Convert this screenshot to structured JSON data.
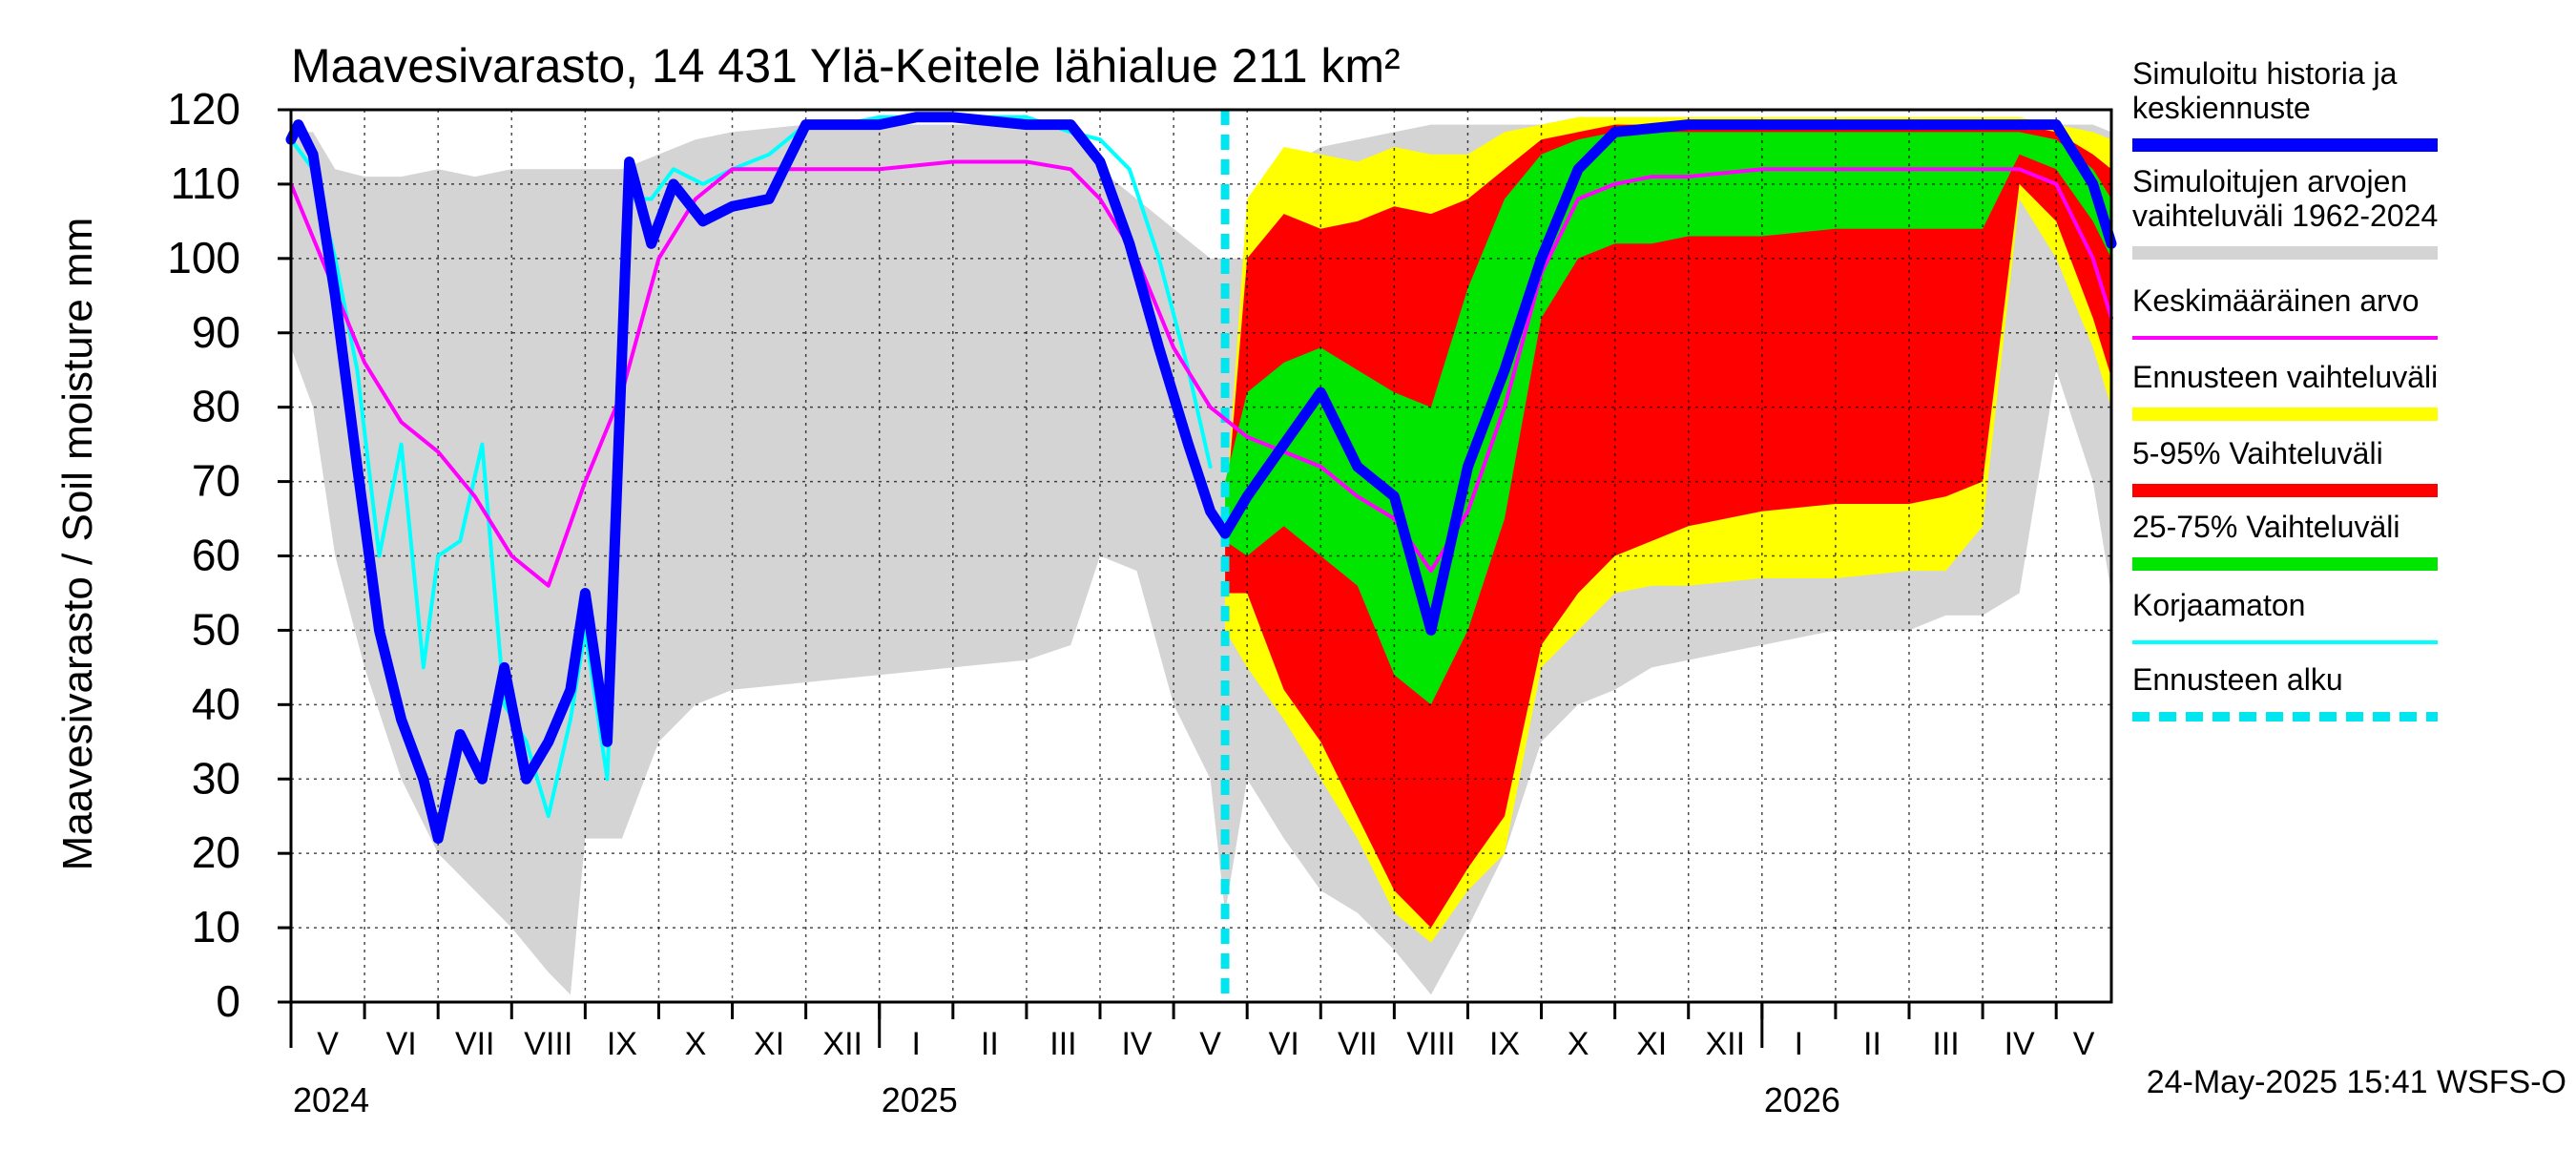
{
  "chart_data": {
    "type": "area",
    "title": "Maavesivarasto, 14 431 Ylä-Keitele lähialue 211 km²",
    "ylabel": "Maavesivarasto / Soil moisture   mm",
    "xlabel": "",
    "ylim": [
      0,
      120
    ],
    "yticks": [
      0,
      10,
      20,
      30,
      40,
      50,
      60,
      70,
      80,
      90,
      100,
      110,
      120
    ],
    "grid": true,
    "x_range_months": [
      0,
      24.75
    ],
    "month_labels": [
      "V",
      "VI",
      "VII",
      "VIII",
      "IX",
      "X",
      "XI",
      "XII",
      "I",
      "II",
      "III",
      "IV",
      "V",
      "VI",
      "VII",
      "VIII",
      "IX",
      "X",
      "XI",
      "XII",
      "I",
      "II",
      "III",
      "IV",
      "V"
    ],
    "year_labels": [
      {
        "label": "2024",
        "month": 0
      },
      {
        "label": "2025",
        "month": 8
      },
      {
        "label": "2026",
        "month": 20
      }
    ],
    "forecast_start_month": 12.7,
    "footer": "24-May-2025 15:41 WSFS-O",
    "colors": {
      "history_range": "#d4d4d4",
      "forecast_range": "#ffff00",
      "p5_95": "#ff0000",
      "p25_75": "#00e600",
      "simulated": "#0000ff",
      "mean": "#ff00ff",
      "uncorrected": "#00ffff",
      "forecast_start": "#00e5ee"
    },
    "legend": [
      {
        "label": "Simuloitu historia ja keskiennuste",
        "key": "simulated"
      },
      {
        "label": "Simuloitujen arvojen vaihteluväli 1962-2024",
        "key": "history_range"
      },
      {
        "label": "Keskimääräinen arvo",
        "key": "mean"
      },
      {
        "label": "Ennusteen vaihteluväli",
        "key": "forecast_range"
      },
      {
        "label": "5-95% Vaihteluväli",
        "key": "p5_95"
      },
      {
        "label": "25-75% Vaihteluväli",
        "key": "p25_75"
      },
      {
        "label": "Korjaamaton",
        "key": "uncorrected"
      },
      {
        "label": "Ennusteen alku",
        "key": "forecast_start"
      }
    ],
    "series": [
      {
        "name": "Simulated history range 1962-2024",
        "kind": "band",
        "key": "history_range",
        "x": [
          0,
          0.3,
          0.6,
          1,
          1.5,
          2,
          2.5,
          3,
          3.5,
          3.8,
          4,
          4.5,
          5,
          5.5,
          6,
          7,
          8,
          9,
          10,
          10.6,
          11,
          11.5,
          12,
          12.5,
          12.7,
          13,
          13.5,
          14,
          14.5,
          15,
          15.5,
          16,
          16.5,
          17,
          17.5,
          18,
          18.5,
          19,
          20,
          21,
          22,
          22.5,
          23,
          23.5,
          24,
          24.5,
          24.75
        ],
        "low": [
          88,
          80,
          60,
          45,
          30,
          20,
          15,
          10,
          4,
          1,
          22,
          22,
          35,
          40,
          42,
          43,
          44,
          45,
          46,
          48,
          60,
          58,
          40,
          30,
          12,
          30,
          22,
          15,
          12,
          7,
          1,
          10,
          20,
          35,
          40,
          42,
          45,
          46,
          48,
          50,
          50,
          52,
          52,
          55,
          85,
          70,
          55
        ],
        "high": [
          117,
          117,
          112,
          111,
          111,
          112,
          111,
          112,
          112,
          112,
          112,
          112,
          114,
          116,
          117,
          118,
          118,
          118,
          118,
          117,
          112,
          108,
          104,
          100,
          100,
          100,
          112,
          115,
          116,
          117,
          118,
          118,
          118,
          118,
          119,
          119,
          119,
          119,
          119,
          119,
          119,
          118,
          117,
          116,
          118,
          118,
          117
        ]
      },
      {
        "name": "Forecast range",
        "kind": "band",
        "key": "forecast_range",
        "x": [
          12.7,
          13,
          13.5,
          14,
          14.5,
          15,
          15.5,
          16,
          16.5,
          17,
          17.5,
          18,
          18.5,
          19,
          20,
          21,
          22,
          22.5,
          23,
          23.5,
          24,
          24.5,
          24.75
        ],
        "low": [
          50,
          45,
          38,
          30,
          22,
          12,
          8,
          15,
          20,
          45,
          50,
          55,
          56,
          56,
          57,
          57,
          58,
          58,
          64,
          108,
          100,
          88,
          80
        ],
        "high": [
          65,
          108,
          115,
          114,
          113,
          115,
          114,
          114,
          117,
          118,
          119,
          119,
          119,
          119,
          119,
          119,
          119,
          119,
          119,
          119,
          118,
          117,
          116
        ]
      },
      {
        "name": "5-95% range",
        "kind": "band",
        "key": "p5_95",
        "x": [
          12.7,
          13,
          13.5,
          14,
          14.5,
          15,
          15.5,
          16,
          16.5,
          17,
          17.5,
          18,
          18.5,
          19,
          20,
          21,
          22,
          22.5,
          23,
          23.5,
          24,
          24.5,
          24.75
        ],
        "low": [
          55,
          55,
          42,
          35,
          25,
          15,
          10,
          18,
          25,
          48,
          55,
          60,
          62,
          64,
          66,
          67,
          67,
          68,
          70,
          110,
          105,
          92,
          84
        ],
        "high": [
          65,
          100,
          106,
          104,
          105,
          107,
          106,
          108,
          112,
          116,
          117,
          118,
          118,
          118,
          118,
          118,
          118,
          118,
          118,
          118,
          117,
          114,
          112
        ]
      },
      {
        "name": "25-75% range",
        "kind": "band",
        "key": "p25_75",
        "x": [
          12.7,
          13,
          13.5,
          14,
          14.5,
          15,
          15.5,
          16,
          16.5,
          17,
          17.5,
          18,
          18.5,
          19,
          20,
          21,
          22,
          22.5,
          23,
          23.5,
          24,
          24.5,
          24.75
        ],
        "low": [
          62,
          60,
          64,
          60,
          56,
          44,
          40,
          50,
          65,
          92,
          100,
          102,
          102,
          103,
          103,
          104,
          104,
          104,
          104,
          114,
          112,
          105,
          100
        ],
        "high": [
          70,
          82,
          86,
          88,
          85,
          82,
          80,
          96,
          108,
          114,
          116,
          117,
          117,
          117,
          117,
          117,
          117,
          117,
          117,
          117,
          116,
          112,
          108
        ]
      },
      {
        "name": "Simulated history and mean forecast",
        "kind": "line",
        "key": "simulated",
        "width": 11,
        "x": [
          0,
          0.1,
          0.3,
          0.6,
          0.9,
          1.2,
          1.5,
          1.8,
          2.0,
          2.3,
          2.6,
          2.9,
          3.2,
          3.5,
          3.8,
          4.0,
          4.3,
          4.6,
          4.9,
          5.2,
          5.6,
          6.0,
          6.5,
          7.0,
          7.5,
          8.0,
          8.5,
          9.0,
          10.0,
          10.6,
          11.0,
          11.4,
          11.8,
          12.2,
          12.5,
          12.7,
          13.0,
          13.5,
          14.0,
          14.5,
          15.0,
          15.5,
          16.0,
          16.5,
          17.0,
          17.5,
          18.0,
          19.0,
          20.0,
          21.0,
          22.0,
          23.0,
          23.5,
          24.0,
          24.5,
          24.75
        ],
        "y": [
          116,
          118,
          114,
          95,
          72,
          50,
          38,
          30,
          22,
          36,
          30,
          45,
          30,
          35,
          42,
          55,
          35,
          113,
          102,
          110,
          105,
          107,
          108,
          118,
          118,
          118,
          119,
          119,
          118,
          118,
          113,
          102,
          88,
          75,
          66,
          63,
          68,
          75,
          82,
          72,
          68,
          50,
          72,
          85,
          100,
          112,
          117,
          118,
          118,
          118,
          118,
          118,
          118,
          118,
          110,
          102
        ]
      },
      {
        "name": "Uncorrected",
        "kind": "line",
        "key": "uncorrected",
        "width": 4,
        "x": [
          0,
          0.3,
          0.6,
          0.9,
          1.2,
          1.5,
          1.8,
          2.0,
          2.3,
          2.6,
          2.9,
          3.2,
          3.5,
          3.8,
          4.0,
          4.3,
          4.6,
          4.9,
          5.2,
          5.6,
          6.0,
          6.5,
          7.0,
          7.5,
          8.0,
          8.5,
          9.0,
          10.0,
          10.6,
          11.0,
          11.4,
          11.8,
          12.2,
          12.5
        ],
        "y": [
          116,
          112,
          100,
          85,
          60,
          75,
          45,
          60,
          62,
          75,
          40,
          35,
          25,
          38,
          50,
          30,
          108,
          108,
          112,
          110,
          112,
          114,
          118,
          118,
          119,
          119,
          119,
          119,
          117,
          116,
          112,
          100,
          85,
          72
        ]
      },
      {
        "name": "Mean value",
        "kind": "line",
        "key": "mean",
        "width": 4,
        "x": [
          0,
          0.5,
          1,
          1.5,
          2,
          2.5,
          3,
          3.5,
          4,
          4.5,
          5,
          5.5,
          6,
          6.5,
          7,
          8,
          9,
          10,
          10.6,
          11,
          11.5,
          12,
          12.5,
          13,
          13.5,
          14,
          14.5,
          15,
          15.5,
          16,
          16.5,
          17,
          17.5,
          18,
          18.5,
          19,
          20,
          21,
          22,
          22.5,
          23,
          23.5,
          24,
          24.5,
          24.75
        ],
        "y": [
          110,
          98,
          86,
          78,
          74,
          68,
          60,
          56,
          70,
          82,
          100,
          108,
          112,
          112,
          112,
          112,
          113,
          113,
          112,
          108,
          100,
          88,
          80,
          76,
          74,
          72,
          68,
          65,
          58,
          66,
          80,
          98,
          108,
          110,
          111,
          111,
          112,
          112,
          112,
          112,
          112,
          112,
          110,
          100,
          92
        ]
      }
    ]
  }
}
